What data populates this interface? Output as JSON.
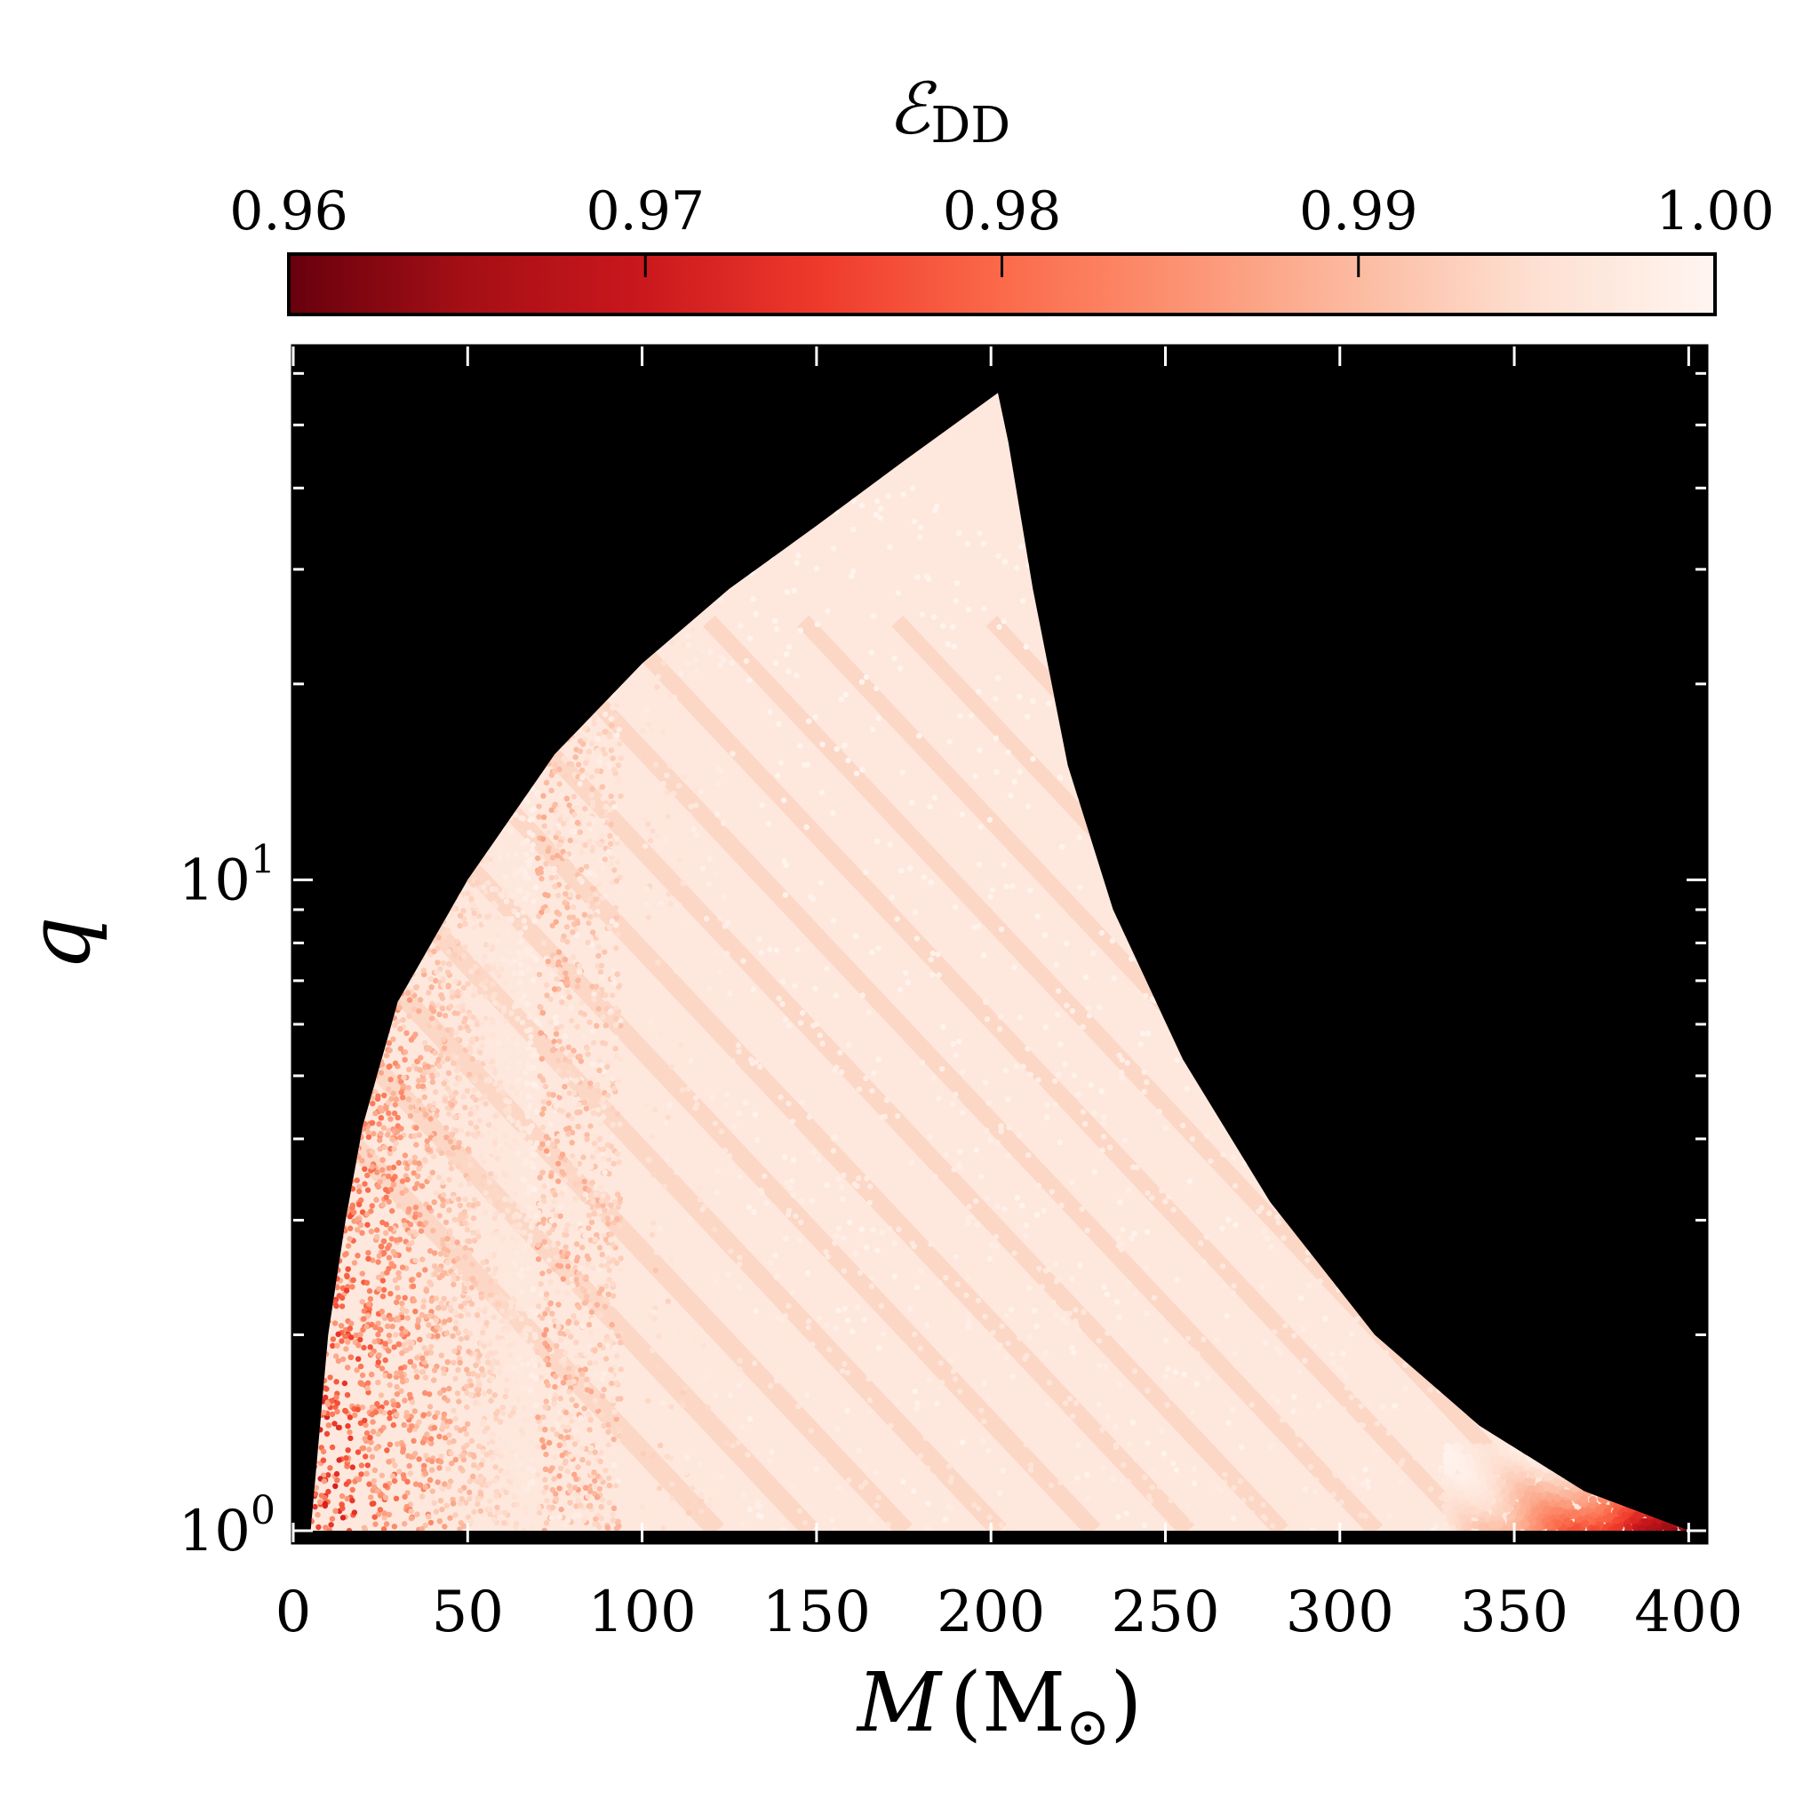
{
  "chart_data": {
    "type": "scatter",
    "title": "",
    "colorbar": {
      "label_main": "ℰ",
      "label_sub": "DD",
      "range": [
        0.96,
        1.0
      ],
      "ticks": [
        0.96,
        0.97,
        0.98,
        0.99,
        1.0
      ],
      "tick_labels": [
        "0.96",
        "0.97",
        "0.98",
        "0.99",
        "1.00"
      ],
      "colormap": "Reds_r",
      "colors": [
        "#67000d",
        "#a50f15",
        "#cb181d",
        "#ef3b2c",
        "#fb6a4a",
        "#fc9272",
        "#fcbba1",
        "#fee0d2",
        "#fff5f0"
      ]
    },
    "xaxis": {
      "label_main": "M",
      "label_unit": "(M",
      "label_sub": "⊙",
      "label_close": ")",
      "range": [
        0,
        405
      ],
      "scale": "linear",
      "ticks": [
        0,
        50,
        100,
        150,
        200,
        250,
        300,
        350,
        400
      ],
      "tick_labels": [
        "0",
        "50",
        "100",
        "150",
        "200",
        "250",
        "300",
        "350",
        "400"
      ]
    },
    "yaxis": {
      "label": "q",
      "range": [
        0.96,
        66
      ],
      "scale": "log",
      "major_ticks": [
        1,
        10
      ],
      "tick_labels": [
        {
          "base": "10",
          "exp": "0"
        },
        {
          "base": "10",
          "exp": "1"
        }
      ],
      "minor_ticks": [
        2,
        3,
        4,
        5,
        6,
        7,
        8,
        9,
        20,
        30,
        40,
        50,
        60
      ]
    },
    "background": "#000000",
    "region_boundaries": {
      "left_edge": [
        [
          5,
          1.0
        ],
        [
          10,
          2.0
        ],
        [
          15,
          3.0
        ],
        [
          20,
          4.2
        ],
        [
          30,
          6.5
        ],
        [
          50,
          10.0
        ],
        [
          75,
          15.6
        ],
        [
          100,
          21.5
        ],
        [
          125,
          28.0
        ],
        [
          150,
          35.0
        ],
        [
          175,
          44.0
        ],
        [
          202,
          56.0
        ]
      ],
      "right_edge": [
        [
          202,
          56.0
        ],
        [
          205,
          47.0
        ],
        [
          212,
          28.0
        ],
        [
          222,
          15.0
        ],
        [
          235,
          9.0
        ],
        [
          255,
          5.3
        ],
        [
          280,
          3.2
        ],
        [
          310,
          2.0
        ],
        [
          340,
          1.45
        ],
        [
          370,
          1.15
        ],
        [
          400,
          1.0
        ]
      ]
    },
    "value_field": {
      "lowest_region": "low M and q (M < 60): values near 0.97–0.99",
      "highest_region": "interior of region: values near 1.00",
      "lower_right_corner": "M 350–400, q 1.0–1.3: values down to 0.96",
      "fringe_count": 14
    }
  }
}
